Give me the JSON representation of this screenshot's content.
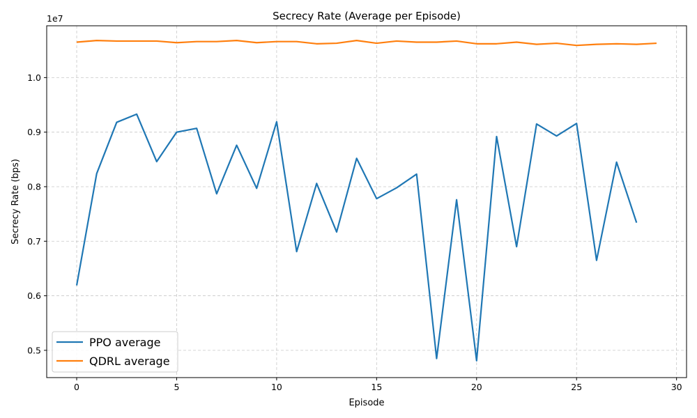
{
  "chart_data": {
    "type": "line",
    "title": "Secrecy Rate (Average per Episode)",
    "xlabel": "Episode",
    "ylabel": "Secrecy Rate (bps)",
    "y_offset_label": "1e7",
    "xlim": [
      -1.5,
      30.5
    ],
    "ylim": [
      4.5,
      10.95
    ],
    "x_ticks": [
      0,
      5,
      10,
      15,
      20,
      25,
      30
    ],
    "y_ticks": [
      0.5,
      0.6,
      0.7,
      0.8,
      0.9,
      1.0
    ],
    "y_ticks_scaled": [
      5,
      6,
      7,
      8,
      9,
      10
    ],
    "grid": true,
    "legend_position": "lower-left",
    "series": [
      {
        "name": "PPO average",
        "color": "#1f77b4",
        "x": [
          0,
          1,
          2,
          3,
          4,
          5,
          6,
          7,
          8,
          9,
          10,
          11,
          12,
          13,
          14,
          15,
          16,
          17,
          18,
          19,
          20,
          21,
          22,
          23,
          24,
          25,
          26,
          27,
          28
        ],
        "values": [
          6.19,
          8.24,
          9.18,
          9.33,
          8.46,
          9.0,
          9.07,
          7.87,
          8.76,
          7.97,
          9.19,
          6.81,
          8.06,
          7.17,
          8.52,
          7.78,
          7.98,
          8.23,
          4.85,
          7.76,
          4.81,
          8.92,
          6.9,
          9.15,
          8.93,
          9.16,
          6.65,
          8.45,
          7.34
        ]
      },
      {
        "name": "QDRL average",
        "color": "#ff7f0e",
        "x": [
          0,
          1,
          2,
          3,
          4,
          5,
          6,
          7,
          8,
          9,
          10,
          11,
          12,
          13,
          14,
          15,
          16,
          17,
          18,
          19,
          20,
          21,
          22,
          23,
          24,
          25,
          26,
          27,
          28,
          29
        ],
        "values": [
          10.65,
          10.68,
          10.67,
          10.67,
          10.67,
          10.64,
          10.66,
          10.66,
          10.68,
          10.64,
          10.66,
          10.66,
          10.62,
          10.63,
          10.68,
          10.63,
          10.67,
          10.65,
          10.65,
          10.67,
          10.62,
          10.62,
          10.65,
          10.61,
          10.63,
          10.59,
          10.61,
          10.62,
          10.61,
          10.63
        ]
      }
    ]
  }
}
